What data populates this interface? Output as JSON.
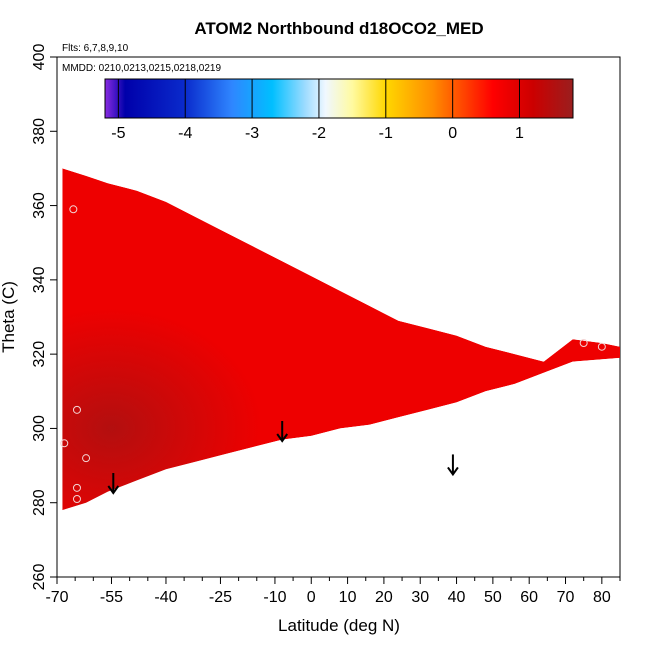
{
  "chart_data": {
    "type": "heatmap",
    "title": "ATOM2 Northbound d18OCO2_MED",
    "notes": [
      "Flts: 6,7,8,9,10",
      "MMDD: 0210,0213,0215,0218,0219"
    ],
    "xlabel": "Latitude (deg N)",
    "ylabel": "Theta (C)",
    "xlim": [
      -70,
      85
    ],
    "ylim": [
      260,
      400
    ],
    "x_ticks": [
      -70,
      -55,
      -40,
      -25,
      -10,
      0,
      10,
      20,
      30,
      40,
      50,
      60,
      70,
      80
    ],
    "x_tick_labels": [
      "-70",
      "-55",
      "-40",
      "-25",
      "-10",
      "0",
      "10",
      "20",
      "30",
      "40",
      "50",
      "60",
      "70",
      "80"
    ],
    "x_minor_ticks": [
      -65,
      -60,
      -50,
      -45,
      -35,
      -30,
      -20,
      -15,
      -5,
      5,
      15,
      25,
      35,
      45,
      55,
      65,
      75,
      85
    ],
    "y_ticks": [
      260,
      280,
      300,
      320,
      340,
      360,
      380,
      400
    ],
    "y_tick_labels": [
      "260",
      "280",
      "300",
      "320",
      "340",
      "360",
      "380",
      "400"
    ],
    "colorbar": {
      "range": [
        -5.2,
        1.8
      ],
      "ticks": [
        -5,
        -4,
        -3,
        -2,
        -1,
        0,
        1
      ],
      "tick_labels": [
        "-5",
        "-4",
        "-3",
        "-2",
        "-1",
        "0",
        "1"
      ],
      "stops": [
        {
          "value": -5.2,
          "color": "#8a2be2"
        },
        {
          "value": -4.9,
          "color": "#0000aa"
        },
        {
          "value": -4.0,
          "color": "#0a2bcc"
        },
        {
          "value": -3.3,
          "color": "#2f86ff"
        },
        {
          "value": -2.7,
          "color": "#00bfff"
        },
        {
          "value": -2.2,
          "color": "#9fdcff"
        },
        {
          "value": -1.9,
          "color": "#f0f8ff"
        },
        {
          "value": -1.5,
          "color": "#fffaa0"
        },
        {
          "value": -1.0,
          "color": "#ffd700"
        },
        {
          "value": -0.3,
          "color": "#ff8c00"
        },
        {
          "value": 0.6,
          "color": "#ff0000"
        },
        {
          "value": 1.2,
          "color": "#cc0000"
        },
        {
          "value": 1.8,
          "color": "#9a1e1e"
        }
      ]
    },
    "field": {
      "domain_vertices": [
        [
          -68.5,
          278
        ],
        [
          -68.5,
          370
        ],
        [
          -62,
          368
        ],
        [
          -56,
          366
        ],
        [
          -48,
          364
        ],
        [
          -40,
          361
        ],
        [
          -32,
          357
        ],
        [
          -24,
          353
        ],
        [
          -16,
          349
        ],
        [
          -8,
          345
        ],
        [
          0,
          341
        ],
        [
          8,
          337
        ],
        [
          16,
          333
        ],
        [
          24,
          329
        ],
        [
          32,
          327
        ],
        [
          40,
          325
        ],
        [
          48,
          322
        ],
        [
          56,
          320
        ],
        [
          64,
          318
        ],
        [
          72,
          324
        ],
        [
          80,
          323
        ],
        [
          85,
          322
        ],
        [
          85,
          319
        ],
        [
          72,
          318
        ],
        [
          64,
          315
        ],
        [
          56,
          312
        ],
        [
          48,
          310
        ],
        [
          40,
          307
        ],
        [
          32,
          305
        ],
        [
          24,
          303
        ],
        [
          16,
          301
        ],
        [
          8,
          300
        ],
        [
          0,
          298
        ],
        [
          -8,
          297
        ],
        [
          -16,
          295
        ],
        [
          -24,
          293
        ],
        [
          -32,
          291
        ],
        [
          -40,
          289
        ],
        [
          -48,
          286
        ],
        [
          -56,
          283
        ],
        [
          -62,
          280
        ]
      ],
      "dominant_value": 0.8,
      "core_value": 1.5,
      "core_center": [
        -55,
        300
      ]
    },
    "series": [
      {
        "name": "flight points",
        "type": "scatter",
        "points": [
          [
            -65.5,
            359
          ],
          [
            -64.5,
            305
          ],
          [
            -68,
            296
          ],
          [
            -62,
            292
          ],
          [
            -64.5,
            284
          ],
          [
            -64.5,
            281
          ],
          [
            75,
            323
          ],
          [
            80,
            322
          ]
        ]
      }
    ],
    "arrows": [
      [
        -54.5,
        288
      ],
      [
        -8,
        302
      ],
      [
        39,
        293
      ]
    ]
  }
}
